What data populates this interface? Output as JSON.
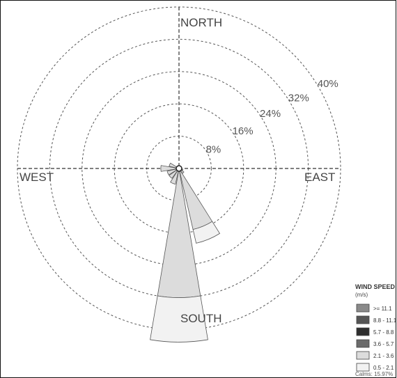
{
  "chart_data": {
    "type": "wind-rose",
    "title": "",
    "compass": {
      "north": "NORTH",
      "south": "SOUTH",
      "east": "EAST",
      "west": "WEST"
    },
    "ring_values": [
      8,
      16,
      24,
      32,
      40
    ],
    "ring_labels": [
      "8%",
      "16%",
      "24%",
      "32%",
      "40%"
    ],
    "legend": {
      "title": "WIND SPEED",
      "unit": "(m/s)",
      "placement": "bottom-right",
      "bins": [
        {
          "label": ">= 11.1",
          "color": "#8a8a8a"
        },
        {
          "label": "8.8 - 11.1",
          "color": "#555555"
        },
        {
          "label": "5.7 - 8.8",
          "color": "#2e2e2e"
        },
        {
          "label": "3.6 - 5.7",
          "color": "#6b6b6b"
        },
        {
          "label": "2.1 - 3.6",
          "color": "#dcdcdc"
        },
        {
          "label": "0.5 - 2.1",
          "color": "#f2f2f2"
        }
      ]
    },
    "calms": "Calms: 15.97%",
    "petals": [
      {
        "direction_deg": 180,
        "segments": [
          {
            "bin": "2.1 - 3.6",
            "percent": 32.0
          },
          {
            "bin": "0.5 - 2.1",
            "percent": 11.0
          }
        ]
      },
      {
        "direction_deg": 157.5,
        "segments": [
          {
            "bin": "2.1 - 3.6",
            "percent": 15.5
          },
          {
            "bin": "0.5 - 2.1",
            "percent": 3.5
          }
        ]
      },
      {
        "direction_deg": 135,
        "segments": [
          {
            "bin": "2.1 - 3.6",
            "percent": 1.5
          }
        ]
      },
      {
        "direction_deg": 202.5,
        "segments": [
          {
            "bin": "2.1 - 3.6",
            "percent": 4.0
          }
        ]
      },
      {
        "direction_deg": 225,
        "segments": [
          {
            "bin": "2.1 - 3.6",
            "percent": 3.0
          }
        ]
      },
      {
        "direction_deg": 247.5,
        "segments": [
          {
            "bin": "2.1 - 3.6",
            "percent": 3.0
          }
        ]
      },
      {
        "direction_deg": 270,
        "segments": [
          {
            "bin": "2.1 - 3.6",
            "percent": 4.5
          }
        ]
      },
      {
        "direction_deg": 292.5,
        "segments": [
          {
            "bin": "2.1 - 3.6",
            "percent": 2.5
          }
        ]
      },
      {
        "direction_deg": 112.5,
        "segments": [
          {
            "bin": "2.1 - 3.6",
            "percent": 1.0
          }
        ]
      }
    ]
  }
}
